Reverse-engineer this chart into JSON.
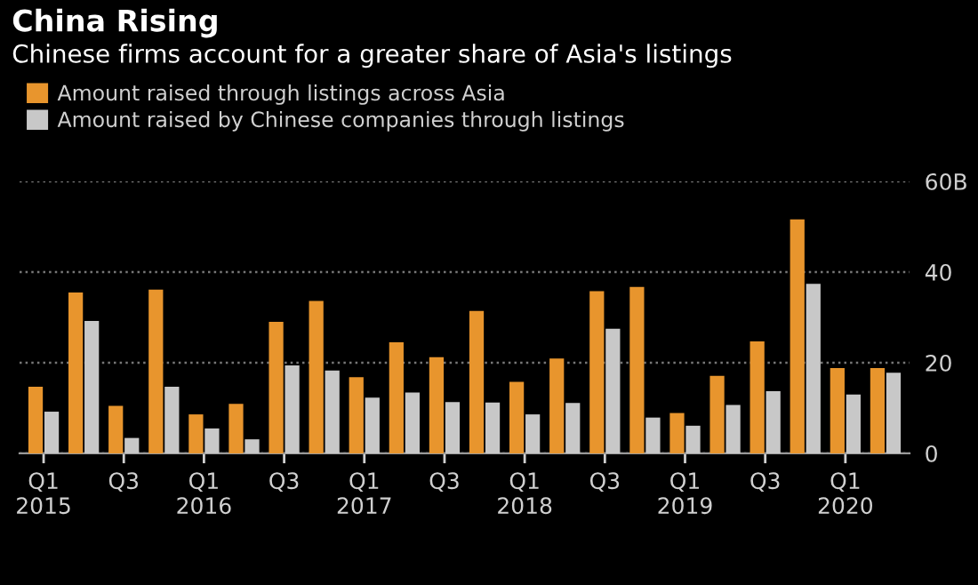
{
  "chart_data": {
    "type": "bar",
    "title": "China Rising",
    "subtitle": "Chinese firms account for a greater share of Asia's listings",
    "categories": [
      "Q1\n2015",
      null,
      "Q3",
      null,
      "Q1\n2016",
      null,
      "Q3",
      null,
      "Q1\n2017",
      null,
      "Q3",
      null,
      "Q1\n2018",
      null,
      "Q3",
      null,
      "Q1\n2019",
      null,
      "Q3",
      null,
      "Q1\n2020",
      null
    ],
    "series": [
      {
        "name": "Amount raised through listings across Asia",
        "color": "#e8952d",
        "values": [
          14.7,
          35.5,
          10.5,
          36.1,
          8.6,
          10.9,
          29,
          33.6,
          16.8,
          24.5,
          21.2,
          31.4,
          15.8,
          20.9,
          35.8,
          36.7,
          8.9,
          17.1,
          24.7,
          51.6,
          18.8,
          18.8
        ]
      },
      {
        "name": "Amount raised by Chinese companies through listings",
        "color": "#c8c8c8",
        "values": [
          9.2,
          29.2,
          3.4,
          14.7,
          5.5,
          3.1,
          19.4,
          18.3,
          12.3,
          13.4,
          11.3,
          11.2,
          8.6,
          11.1,
          27.5,
          7.9,
          6.1,
          10.7,
          13.7,
          37.4,
          13,
          17.8
        ]
      }
    ],
    "ylim": [
      0,
      60
    ],
    "yticks": [
      0,
      20,
      40,
      {
        "value": 60,
        "label": "60B"
      }
    ],
    "grid": "y",
    "legend": "top left"
  }
}
